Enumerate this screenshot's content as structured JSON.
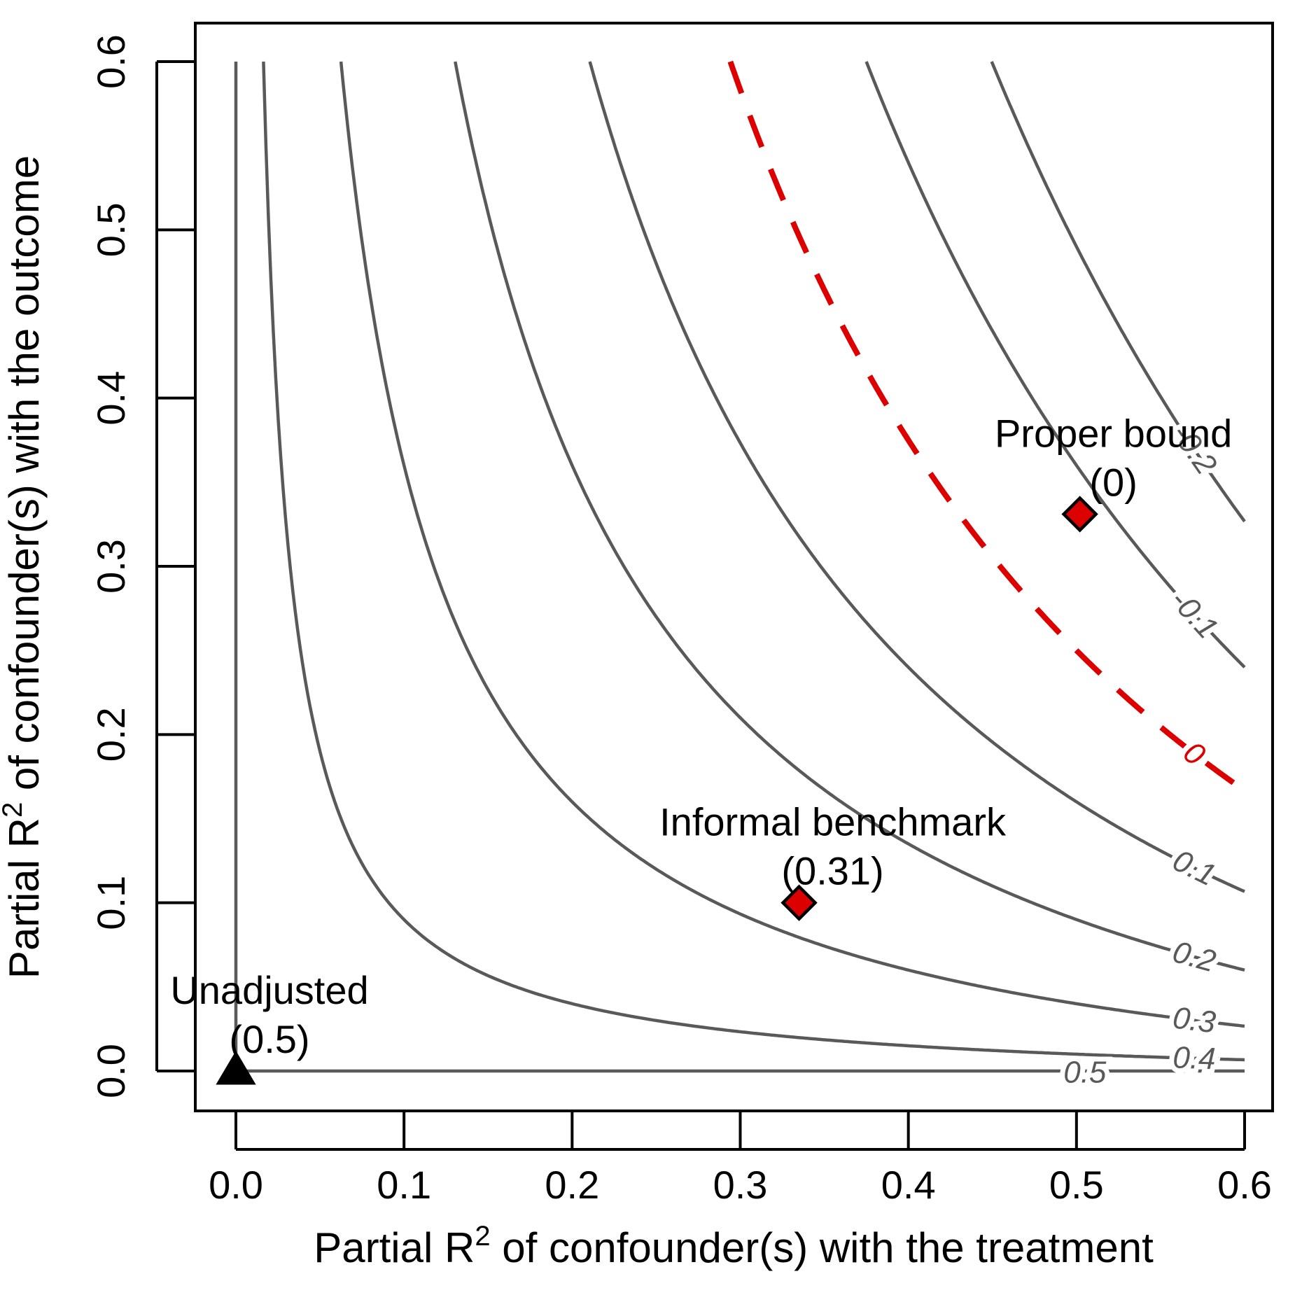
{
  "chart_data": {
    "type": "contour",
    "xlabel_pre": "Partial R",
    "xlabel_sup": "2",
    "xlabel_post": " of confounder(s) with the treatment",
    "ylabel_pre": "Partial R",
    "ylabel_sup": "2",
    "ylabel_post": " of confounder(s) with the outcome",
    "xlim": [
      0,
      0.6
    ],
    "ylim": [
      0,
      0.6
    ],
    "x_ticks": [
      "0.0",
      "0.1",
      "0.2",
      "0.3",
      "0.4",
      "0.5",
      "0.6"
    ],
    "y_ticks": [
      "0.0",
      "0.1",
      "0.2",
      "0.3",
      "0.4",
      "0.5",
      "0.6"
    ],
    "estimate": 0.5,
    "contours": [
      {
        "level": 0.5,
        "label": "0.5",
        "color": "#595959",
        "dashed": false
      },
      {
        "level": 0.4,
        "label": "0.4",
        "color": "#595959",
        "dashed": false
      },
      {
        "level": 0.3,
        "label": "0.3",
        "color": "#595959",
        "dashed": false
      },
      {
        "level": 0.2,
        "label": "0.2",
        "color": "#595959",
        "dashed": false
      },
      {
        "level": 0.1,
        "label": "0.1",
        "color": "#595959",
        "dashed": false
      },
      {
        "level": 0.0,
        "label": "0",
        "color": "#dd0000",
        "dashed": true
      },
      {
        "level": -0.1,
        "label": "-0.1",
        "color": "#595959",
        "dashed": false
      },
      {
        "level": -0.2,
        "label": "-0.2",
        "color": "#595959",
        "dashed": false
      }
    ],
    "points": [
      {
        "name": "Unadjusted",
        "value_label": "(0.5)",
        "x": 0.0,
        "y": 0.0,
        "marker": "triangle",
        "color": "#000000"
      },
      {
        "name": "Informal benchmark",
        "value_label": "(0.31)",
        "x": 0.335,
        "y": 0.1,
        "marker": "diamond",
        "color": "#dd0000"
      },
      {
        "name": "Proper bound",
        "value_label": "(0)",
        "x": 0.502,
        "y": 0.331,
        "marker": "diamond",
        "color": "#dd0000"
      }
    ],
    "grid": false,
    "legend": "none"
  }
}
